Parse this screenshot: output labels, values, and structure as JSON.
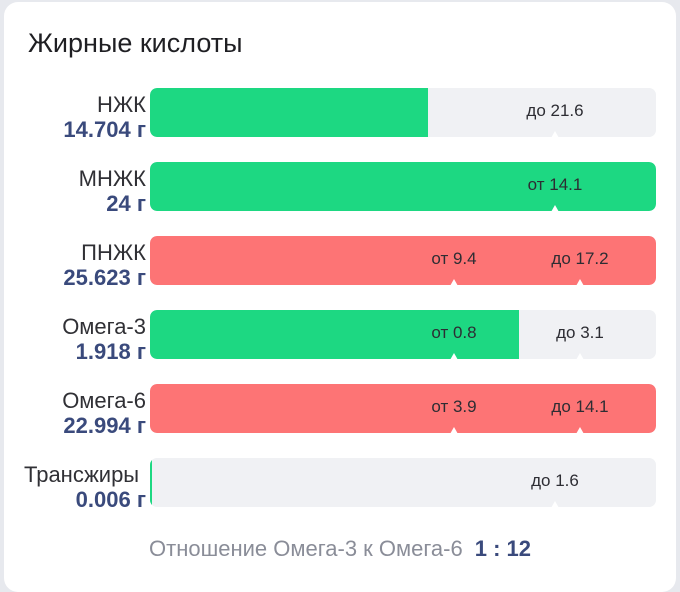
{
  "card": {
    "title": "Жирные кислоты"
  },
  "rows": [
    {
      "label": "НЖК",
      "value": "14.704 г",
      "fill_color": "green",
      "fill_fraction": 0.55,
      "markers": [
        {
          "text": "до 21.6",
          "pos": 0.8
        }
      ]
    },
    {
      "label": "МНЖК",
      "value": "24 г",
      "fill_color": "green",
      "fill_fraction": 1.0,
      "markers": [
        {
          "text": "от 14.1",
          "pos": 0.8
        }
      ]
    },
    {
      "label": "ПНЖК",
      "value": "25.623 г",
      "fill_color": "red",
      "fill_fraction": 1.0,
      "markers": [
        {
          "text": "от 9.4",
          "pos": 0.6
        },
        {
          "text": "до 17.2",
          "pos": 0.85
        }
      ]
    },
    {
      "label": "Омега-3",
      "value": "1.918 г",
      "fill_color": "green",
      "fill_fraction": 0.73,
      "markers": [
        {
          "text": "от 0.8",
          "pos": 0.6
        },
        {
          "text": "до 3.1",
          "pos": 0.85
        }
      ]
    },
    {
      "label": "Омега-6",
      "value": "22.994 г",
      "fill_color": "red",
      "fill_fraction": 1.0,
      "markers": [
        {
          "text": "от 3.9",
          "pos": 0.6
        },
        {
          "text": "до 14.1",
          "pos": 0.85
        }
      ]
    },
    {
      "label": "Трансжиры",
      "value": "0.006 г",
      "fill_color": "green",
      "fill_fraction": 0.004,
      "markers": [
        {
          "text": "до 1.6",
          "pos": 0.8
        }
      ]
    }
  ],
  "footer": {
    "text": "Отношение Омега-3 к Омега-6",
    "ratio": "1 : 12"
  }
}
